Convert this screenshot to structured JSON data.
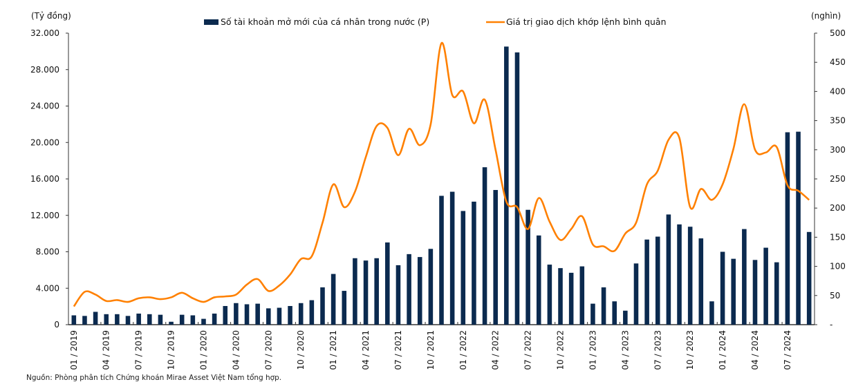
{
  "chart_data": {
    "type": "bar+line",
    "title": "",
    "left_axis_label": "(Tỷ đồng)",
    "right_axis_label": "(nghìn)",
    "left_ylim": [
      0,
      32000
    ],
    "right_ylim": [
      0,
      500
    ],
    "left_ticks": [
      "0",
      "4.000",
      "8.000",
      "12.000",
      "16.000",
      "20.000",
      "24.000",
      "28.000",
      "32.000"
    ],
    "left_tick_values": [
      0,
      4000,
      8000,
      12000,
      16000,
      20000,
      24000,
      28000,
      32000
    ],
    "right_ticks": [
      "-",
      "50",
      "100",
      "150",
      "200",
      "250",
      "300",
      "350",
      "400",
      "450",
      "500"
    ],
    "right_tick_values": [
      0,
      50,
      100,
      150,
      200,
      250,
      300,
      350,
      400,
      450,
      500
    ],
    "x_tick_labels": [
      "01 / 2019",
      "04 / 2019",
      "07 / 2019",
      "10 / 2019",
      "01 / 2020",
      "04 / 2020",
      "07 / 2020",
      "10 / 2020",
      "01 / 2021",
      "04 / 2021",
      "07 / 2021",
      "10 / 2021",
      "01 / 2022",
      "04 / 2022",
      "07 / 2022",
      "10 / 2022",
      "01 / 2023",
      "04 / 2023",
      "07 / 2023",
      "10 / 2023",
      "01 / 2024",
      "04 / 2024",
      "07 / 2024"
    ],
    "x_tick_every": 3,
    "n_months": 69,
    "grid": false,
    "legend_position": "top",
    "series": [
      {
        "name": "Số tài khoản mở mới của cá nhân trong nước (P)",
        "type": "bar",
        "axis": "right",
        "color": "#0b2a4f",
        "values": [
          16,
          15,
          22,
          18,
          18,
          15,
          19,
          18,
          17,
          5,
          17,
          16,
          10,
          19,
          32,
          37,
          35,
          36,
          28,
          29,
          32,
          37,
          42,
          64,
          87,
          58,
          114,
          110,
          114,
          141,
          102,
          121,
          116,
          130,
          221,
          228,
          195,
          211,
          270,
          231,
          477,
          467,
          197,
          153,
          103,
          97,
          89,
          100,
          36,
          64,
          40,
          24,
          105,
          146,
          151,
          189,
          172,
          168,
          148,
          40,
          125,
          113,
          164,
          111,
          132,
          107,
          330,
          331,
          159
        ]
      },
      {
        "name": "Giá trị giao dịch khớp lệnh bình quân",
        "type": "line",
        "axis": "left",
        "color": "#ff8000",
        "values": [
          2000,
          3600,
          3300,
          2600,
          2700,
          2500,
          2900,
          3000,
          2800,
          3000,
          3500,
          2900,
          2500,
          3000,
          3100,
          3300,
          4400,
          5000,
          3700,
          4300,
          5500,
          7200,
          7500,
          11200,
          15400,
          12900,
          14600,
          18400,
          21800,
          21600,
          18600,
          21500,
          19700,
          22000,
          30900,
          25200,
          25600,
          22100,
          24700,
          19200,
          13500,
          12900,
          10500,
          13900,
          11300,
          9300,
          10500,
          11900,
          8800,
          8600,
          8100,
          10000,
          11200,
          15400,
          16900,
          20300,
          20500,
          12900,
          14900,
          13700,
          15400,
          19300,
          24200,
          19200,
          18900,
          19500,
          15300,
          14700,
          13700
        ]
      }
    ]
  },
  "source_note": "Nguồn: Phòng phân tích Chứng khoán Mirae Asset Việt Nam tổng hợp."
}
